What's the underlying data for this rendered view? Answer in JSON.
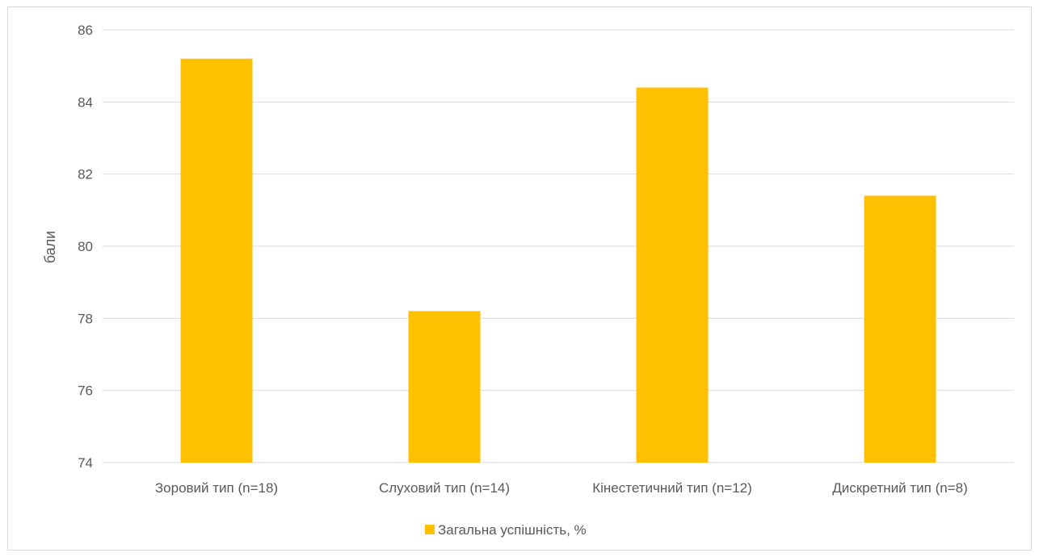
{
  "chart_data": {
    "type": "bar",
    "title": "",
    "xlabel": "",
    "ylabel": "бали",
    "categories": [
      "Зоровий тип (n=18)",
      "Слуховий тип (n=14)",
      "Кінестетичний тип (n=12)",
      "Дискретний тип (n=8)"
    ],
    "series": [
      {
        "name": "Загальна успішність, %",
        "values": [
          85.2,
          78.2,
          84.4,
          81.4
        ],
        "color": "#FFC000"
      }
    ],
    "ylim": [
      74,
      86
    ],
    "yticks": [
      74,
      76,
      78,
      80,
      82,
      84,
      86
    ],
    "grid": true,
    "legend_position": "bottom",
    "colors": {
      "bar": "#FFC000",
      "grid": "#d9d9d9",
      "text": "#595959",
      "border": "#d9d9d9"
    }
  }
}
